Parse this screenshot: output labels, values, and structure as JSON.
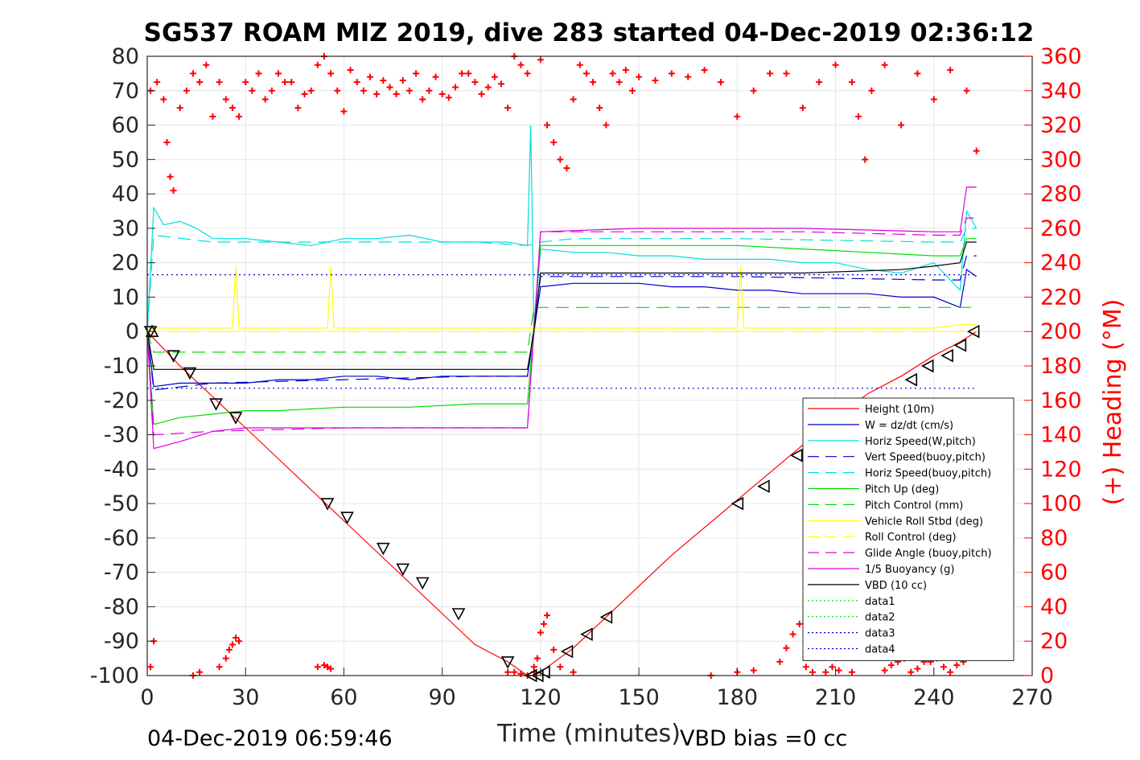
{
  "chart_data": {
    "type": "line",
    "title": "SG537 ROAM MIZ 2019, dive 283 started 04-Dec-2019 02:36:12",
    "xlabel": "Time (minutes)",
    "ylabel": "",
    "ylabel_right": "(+) Heading (°M)",
    "xlim": [
      0,
      270
    ],
    "ylim": [
      -100,
      80
    ],
    "ylim_right": [
      0,
      360
    ],
    "xticks": [
      "0",
      "30",
      "60",
      "90",
      "120",
      "150",
      "180",
      "210",
      "240",
      "270"
    ],
    "yticks": [
      "80",
      "70",
      "60",
      "50",
      "40",
      "30",
      "20",
      "10",
      "0",
      "-10",
      "-20",
      "-30",
      "-40",
      "-50",
      "-60",
      "-70",
      "-80",
      "-90",
      "-100"
    ],
    "yticks_right": [
      "360",
      "340",
      "320",
      "300",
      "280",
      "260",
      "240",
      "220",
      "200",
      "180",
      "160",
      "140",
      "120",
      "100",
      "80",
      "60",
      "40",
      "20",
      "0"
    ],
    "footer_left": "04-Dec-2019 06:59:46",
    "footer_right": "VBD bias =0 cc",
    "legend_position": "lower-right",
    "grid": true,
    "series": [
      {
        "name": "Height (10m)",
        "color": "#ff0000",
        "style": "solid",
        "x": [
          0,
          2,
          10,
          20,
          30,
          40,
          50,
          60,
          70,
          80,
          90,
          100,
          110,
          116,
          118,
          120,
          130,
          140,
          150,
          160,
          170,
          180,
          190,
          200,
          210,
          220,
          230,
          240,
          248,
          253
        ],
        "y": [
          0,
          -2,
          -10,
          -19,
          -28,
          -37,
          -46,
          -55,
          -64,
          -73,
          -82,
          -91,
          -96,
          -100,
          -100,
          -99,
          -92,
          -83,
          -74,
          -65,
          -57,
          -49,
          -41,
          -33,
          -25,
          -18,
          -13,
          -7,
          -3,
          0
        ]
      },
      {
        "name": "W = dz/dt (cm/s)",
        "color": "#0000cc",
        "style": "solid",
        "x": [
          0,
          2,
          10,
          20,
          30,
          40,
          50,
          60,
          70,
          80,
          90,
          100,
          110,
          116,
          118,
          120,
          130,
          140,
          150,
          160,
          170,
          180,
          190,
          200,
          210,
          220,
          230,
          240,
          248,
          250,
          253
        ],
        "y": [
          0,
          -16,
          -15,
          -15,
          -15,
          -14,
          -14,
          -13,
          -13,
          -14,
          -13,
          -13,
          -13,
          -13,
          0,
          13,
          14,
          14,
          14,
          13,
          13,
          12,
          12,
          11,
          11,
          11,
          10,
          10,
          7,
          18,
          16
        ]
      },
      {
        "name": "Horiz Speed(W,pitch)",
        "color": "#00dddd",
        "style": "solid",
        "x": [
          0,
          2,
          5,
          10,
          15,
          20,
          30,
          40,
          50,
          60,
          70,
          80,
          90,
          100,
          110,
          116,
          117,
          118,
          120,
          130,
          140,
          150,
          160,
          170,
          180,
          190,
          200,
          210,
          220,
          230,
          240,
          248,
          250,
          253
        ],
        "y": [
          0,
          36,
          31,
          32,
          30,
          27,
          27,
          26,
          25,
          27,
          27,
          28,
          26,
          26,
          26,
          25,
          60,
          0,
          24,
          23,
          23,
          22,
          22,
          21,
          21,
          21,
          20,
          20,
          18,
          17,
          20,
          12,
          35,
          30
        ]
      },
      {
        "name": "Vert Speed(buoy,pitch)",
        "color": "#0000cc",
        "style": "dashed",
        "x": [
          0,
          2,
          20,
          60,
          100,
          116,
          120,
          130,
          180,
          240,
          248,
          250,
          253
        ],
        "y": [
          0,
          -17,
          -15,
          -14,
          -13,
          -13,
          16,
          16,
          16,
          15,
          15,
          22,
          22
        ]
      },
      {
        "name": "Horiz Speed(buoy,pitch)",
        "color": "#00dddd",
        "style": "dashed",
        "x": [
          0,
          2,
          20,
          60,
          100,
          116,
          120,
          130,
          180,
          240,
          248,
          250,
          253
        ],
        "y": [
          0,
          28,
          26,
          26,
          26,
          25,
          26,
          27,
          27,
          26,
          26,
          30,
          30
        ]
      },
      {
        "name": "Pitch Up (deg)",
        "color": "#00dd00",
        "style": "solid",
        "x": [
          0,
          2,
          10,
          20,
          30,
          40,
          60,
          80,
          100,
          116,
          120,
          130,
          150,
          180,
          200,
          220,
          240,
          248,
          250,
          253
        ],
        "y": [
          0,
          -27,
          -25,
          -24,
          -23,
          -23,
          -22,
          -22,
          -21,
          -21,
          25,
          25,
          25,
          25,
          24,
          23,
          22,
          22,
          27,
          27
        ]
      },
      {
        "name": "Pitch Control (mm)",
        "color": "#00dd00",
        "style": "dashed",
        "x": [
          0,
          2,
          116,
          118,
          253
        ],
        "y": [
          0,
          -6,
          -6,
          7,
          7
        ]
      },
      {
        "name": "Vehicle Roll Stbd (deg)",
        "color": "#ffff00",
        "style": "solid",
        "x": [
          0,
          2,
          10,
          26,
          27,
          28,
          50,
          55,
          56,
          57,
          100,
          110,
          116,
          120,
          130,
          180,
          181,
          182,
          200,
          220,
          240,
          248,
          253
        ],
        "y": [
          0,
          1,
          1,
          1,
          19,
          1,
          1,
          1,
          19,
          1,
          1,
          1,
          1,
          1,
          1,
          1,
          19,
          1,
          1,
          1,
          1,
          2,
          2
        ]
      },
      {
        "name": "Roll Control (deg)",
        "color": "#ffff00",
        "style": "dashed",
        "x": [
          0,
          2,
          253
        ],
        "y": [
          0,
          0,
          0
        ]
      },
      {
        "name": "Glide Angle (buoy,pitch)",
        "color": "#dd00dd",
        "style": "dashed",
        "x": [
          0,
          2,
          20,
          60,
          100,
          116,
          120,
          150,
          200,
          240,
          248,
          250,
          253
        ],
        "y": [
          0,
          -30,
          -29,
          -28,
          -28,
          -28,
          29,
          29,
          29,
          28,
          28,
          33,
          33
        ]
      },
      {
        "name": "1/5 Buoyancy (g)",
        "color": "#dd00dd",
        "style": "solid",
        "x": [
          0,
          2,
          10,
          20,
          30,
          60,
          100,
          116,
          118,
          120,
          150,
          200,
          240,
          248,
          250,
          253
        ],
        "y": [
          0,
          -34,
          -32,
          -29,
          -28,
          -28,
          -28,
          -28,
          0,
          29,
          30,
          30,
          29,
          29,
          42,
          42
        ]
      },
      {
        "name": "VBD (10 cc)",
        "color": "#000000",
        "style": "solid",
        "x": [
          0,
          2,
          116,
          118,
          120,
          200,
          230,
          240,
          248,
          250,
          253
        ],
        "y": [
          0,
          -11,
          -11,
          0,
          17,
          17,
          18,
          19,
          20,
          26,
          26
        ]
      },
      {
        "name": "data1",
        "color": "#00dd00",
        "style": "dotted",
        "x": [],
        "y": []
      },
      {
        "name": "data2",
        "color": "#00dd00",
        "style": "dotted",
        "x": [],
        "y": []
      },
      {
        "name": "data3",
        "color": "#0000cc",
        "style": "dotted",
        "x": [
          0,
          253
        ],
        "y": [
          16.5,
          16.5
        ]
      },
      {
        "name": "data4",
        "color": "#0000cc",
        "style": "dotted",
        "x": [
          0,
          253
        ],
        "y": [
          -16.5,
          -16.5
        ]
      }
    ],
    "heading_series": {
      "name": "Heading",
      "color": "#ff0000",
      "marker": "+",
      "x": [
        1,
        3,
        5,
        6,
        7,
        8,
        10,
        12,
        14,
        16,
        18,
        20,
        22,
        24,
        26,
        28,
        30,
        32,
        34,
        36,
        38,
        40,
        42,
        44,
        46,
        48,
        50,
        52,
        54,
        56,
        58,
        60,
        62,
        64,
        66,
        68,
        70,
        72,
        74,
        76,
        78,
        80,
        82,
        84,
        86,
        88,
        90,
        92,
        94,
        96,
        98,
        100,
        102,
        104,
        106,
        108,
        110,
        112,
        114,
        116,
        118,
        120,
        122,
        124,
        126,
        128,
        130,
        132,
        134,
        136,
        138,
        140,
        142,
        144,
        146,
        148,
        150,
        155,
        160,
        165,
        170,
        175,
        180,
        185,
        190,
        195,
        200,
        205,
        210,
        215,
        217,
        219,
        221,
        225,
        230,
        235,
        240,
        245,
        250,
        253
      ],
      "y": [
        340,
        345,
        335,
        310,
        290,
        282,
        330,
        340,
        350,
        345,
        355,
        325,
        345,
        335,
        330,
        325,
        345,
        340,
        350,
        335,
        340,
        350,
        345,
        345,
        330,
        338,
        340,
        355,
        360,
        350,
        340,
        328,
        352,
        345,
        340,
        348,
        338,
        346,
        342,
        338,
        346,
        340,
        350,
        335,
        340,
        348,
        338,
        336,
        342,
        350,
        350,
        345,
        338,
        342,
        348,
        344,
        330,
        360,
        355,
        350,
        5,
        358,
        320,
        310,
        300,
        295,
        335,
        355,
        350,
        345,
        330,
        320,
        350,
        345,
        352,
        340,
        348,
        346,
        350,
        348,
        352,
        345,
        325,
        340,
        350,
        350,
        330,
        345,
        355,
        345,
        325,
        300,
        340,
        355,
        320,
        350,
        335,
        352,
        340,
        305
      ],
      "xb": [
        1,
        2,
        14,
        16,
        22,
        24,
        25,
        26,
        27,
        28,
        52,
        54,
        55,
        56,
        110,
        112,
        114,
        116,
        118,
        119,
        120,
        121,
        122,
        124,
        126,
        130,
        172,
        180,
        185,
        193,
        195,
        197,
        199,
        201,
        203,
        207,
        209,
        211,
        215,
        225,
        227,
        229,
        231,
        233,
        235,
        237,
        239,
        241,
        243,
        245,
        247,
        249
      ],
      "yb": [
        5,
        20,
        0,
        2,
        5,
        10,
        15,
        18,
        22,
        20,
        5,
        6,
        5,
        4,
        2,
        2,
        1,
        0,
        2,
        10,
        25,
        30,
        35,
        15,
        5,
        2,
        0,
        2,
        3,
        8,
        16,
        24,
        30,
        5,
        2,
        2,
        5,
        3,
        2,
        3,
        6,
        8,
        10,
        2,
        4,
        8,
        8,
        10,
        5,
        2,
        6,
        8
      ]
    },
    "markers": {
      "descent": {
        "x": [
          1,
          8,
          13,
          21,
          27,
          55,
          61,
          72,
          78,
          84,
          95,
          110
        ],
        "y": [
          0,
          -7,
          -12,
          -21,
          -25,
          -50,
          -54,
          -63,
          -69,
          -73,
          -82,
          -96
        ]
      },
      "ascent": {
        "x": [
          117,
          119,
          121,
          128,
          134,
          140,
          180,
          188,
          198,
          233,
          238,
          244,
          248,
          252
        ],
        "y": [
          -100,
          -100,
          -99,
          -93,
          -88,
          -83,
          -50,
          -45,
          -36,
          -14,
          -10,
          -7,
          -4,
          0
        ]
      }
    },
    "legend_entries": [
      "Height (10m)",
      "W = dz/dt (cm/s)",
      "Horiz Speed(W,pitch)",
      "Vert Speed(buoy,pitch)",
      "Horiz Speed(buoy,pitch)",
      "Pitch Up (deg)",
      "Pitch Control (mm)",
      "Vehicle Roll Stbd (deg)",
      "Roll Control (deg)",
      "Glide Angle (buoy,pitch)",
      "1/5 Buoyancy (g)",
      "VBD (10 cc)",
      "data1",
      "data2",
      "data3",
      "data4"
    ]
  }
}
